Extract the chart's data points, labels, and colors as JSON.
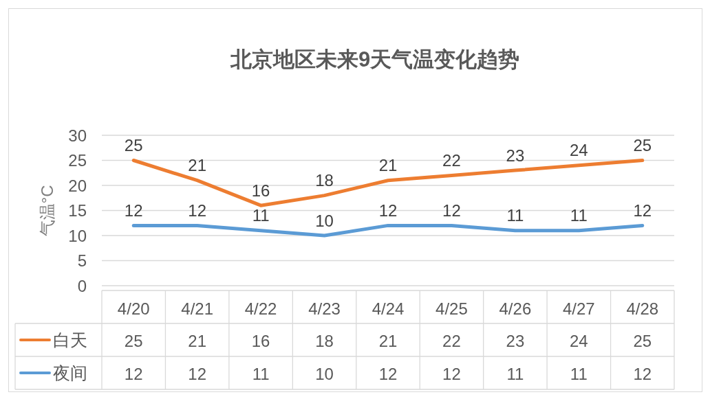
{
  "chart_data": {
    "type": "line",
    "title": "北京地区未来9天气温变化趋势",
    "ylabel": "气温°C",
    "categories": [
      "4/20",
      "4/21",
      "4/22",
      "4/23",
      "4/24",
      "4/25",
      "4/26",
      "4/27",
      "4/28"
    ],
    "series": [
      {
        "name": "白天",
        "color": "#ed7d31",
        "values": [
          25,
          21,
          16,
          18,
          21,
          22,
          23,
          24,
          25
        ]
      },
      {
        "name": "夜间",
        "color": "#5b9bd5",
        "values": [
          12,
          12,
          11,
          10,
          12,
          12,
          11,
          11,
          12
        ]
      }
    ],
    "ylim": [
      0,
      30
    ],
    "yticks": [
      0,
      5,
      10,
      15,
      20,
      25,
      30
    ],
    "grid": "y",
    "data_labels": true,
    "legend": "bottom left",
    "line_style": "solid",
    "annotations": [
      {
        "text": "25",
        "x": "4/20",
        "y": 25
      },
      {
        "text": "21",
        "x": "4/21",
        "y": 21
      },
      {
        "text": "16",
        "x": "4/22",
        "y": 16
      },
      {
        "text": "18",
        "x": "4/23",
        "y": 18
      },
      {
        "text": "21",
        "x": "4/24",
        "y": 21
      },
      {
        "text": "22",
        "x": "4/25",
        "y": 22
      },
      {
        "text": "23",
        "x": "4/26",
        "y": 23
      },
      {
        "text": "24",
        "x": "4/27",
        "y": 24
      },
      {
        "text": "25",
        "x": "4/28",
        "y": 25
      },
      {
        "text": "12",
        "x": "4/20",
        "y": 12
      },
      {
        "text": "12",
        "x": "4/21",
        "y": 12
      },
      {
        "text": "11",
        "x": "4/22",
        "y": 11
      },
      {
        "text": "10",
        "x": "4/23",
        "y": 10
      },
      {
        "text": "12",
        "x": "4/24",
        "y": 12
      },
      {
        "text": "12",
        "x": "4/25",
        "y": 12
      },
      {
        "text": "11",
        "x": "4/26",
        "y": 11
      },
      {
        "text": "11",
        "x": "4/27",
        "y": 11
      },
      {
        "text": "12",
        "x": "4/28",
        "y": 12
      }
    ]
  }
}
